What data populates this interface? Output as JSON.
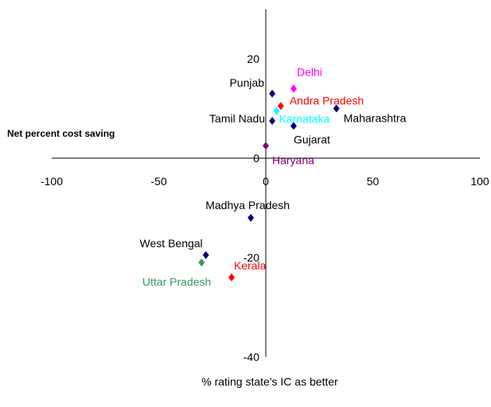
{
  "chart_data": {
    "type": "scatter",
    "title": "",
    "xlabel": "% rating state's IC as better",
    "ylabel": "Net percent cost saving",
    "xlim": [
      -100,
      100
    ],
    "ylim": [
      -40,
      30
    ],
    "x_ticks": [
      -100,
      -50,
      0,
      50,
      100
    ],
    "y_ticks": [
      20,
      0,
      -20,
      -40
    ],
    "grid": false,
    "legend": "none",
    "points": [
      {
        "label": "Delhi",
        "x": 13,
        "y": 14,
        "color": "#ff00ff",
        "label_color": "#ff00ff"
      },
      {
        "label": "Punjab",
        "x": 3,
        "y": 13,
        "color": "#000080",
        "label_color": "#000000"
      },
      {
        "label": "Andra Pradesh",
        "x": 7,
        "y": 10.5,
        "color": "#ff0000",
        "label_color": "#ff0000"
      },
      {
        "label": "Karnataka",
        "x": 5,
        "y": 9.5,
        "color": "#00ffff",
        "label_color": "#00ffff"
      },
      {
        "label": "Maharashtra",
        "x": 33,
        "y": 10,
        "color": "#000080",
        "label_color": "#000000"
      },
      {
        "label": "Tamil Nadu",
        "x": 3,
        "y": 7.5,
        "color": "#000080",
        "label_color": "#000000"
      },
      {
        "label": "Gujarat",
        "x": 13,
        "y": 6.5,
        "color": "#000080",
        "label_color": "#000000"
      },
      {
        "label": "Haryana",
        "x": 0,
        "y": 2.5,
        "color": "#800080",
        "label_color": "#800080"
      },
      {
        "label": "Madhya Pradesh",
        "x": -7,
        "y": -12,
        "color": "#000080",
        "label_color": "#000000"
      },
      {
        "label": "West Bengal",
        "x": -28,
        "y": -19.5,
        "color": "#000080",
        "label_color": "#000000"
      },
      {
        "label": "Uttar Pradesh",
        "x": -30,
        "y": -21,
        "color": "#339966",
        "label_color": "#339966"
      },
      {
        "label": "Kerala",
        "x": -16,
        "y": -24,
        "color": "#ff0000",
        "label_color": "#ff0000"
      }
    ]
  }
}
